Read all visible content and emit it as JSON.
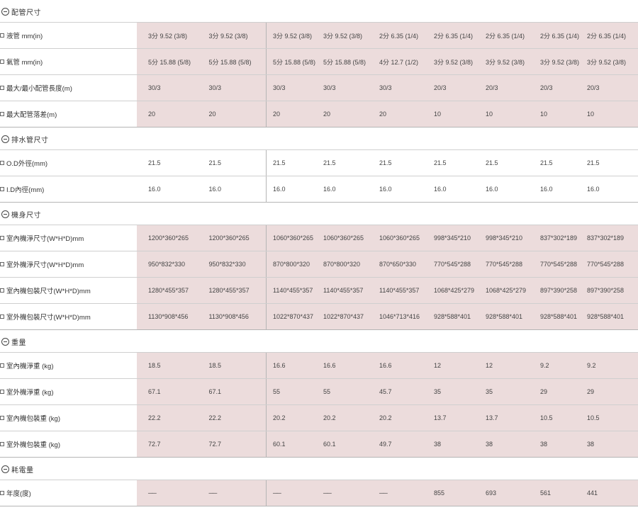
{
  "sections": [
    {
      "title": "配管尺寸",
      "pink": true,
      "rows": [
        {
          "label": "液管 mm(in)",
          "values": [
            "3分 9.52 (3/8)",
            "3分 9.52 (3/8)",
            "3分 9.52 (3/8)",
            "3分 9.52 (3/8)",
            "2分 6.35 (1/4)",
            "2分 6.35 (1/4)",
            "2分 6.35 (1/4)",
            "2分 6.35 (1/4)",
            "2分 6.35 (1/4)"
          ]
        },
        {
          "label": "氣管 mm(in)",
          "values": [
            "5分 15.88 (5/8)",
            "5分 15.88 (5/8)",
            "5分 15.88 (5/8)",
            "5分 15.88 (5/8)",
            "4分 12.7 (1/2)",
            "3分 9.52 (3/8)",
            "3分 9.52 (3/8)",
            "3分 9.52 (3/8)",
            "3分 9.52 (3/8)"
          ]
        },
        {
          "label": "最大/最小配管長度(m)",
          "values": [
            "30/3",
            "30/3",
            "30/3",
            "30/3",
            "30/3",
            "20/3",
            "20/3",
            "20/3",
            "20/3"
          ]
        },
        {
          "label": "最大配管落差(m)",
          "values": [
            "20",
            "20",
            "20",
            "20",
            "20",
            "10",
            "10",
            "10",
            "10"
          ]
        }
      ]
    },
    {
      "title": "排水管尺寸",
      "pink": false,
      "rows": [
        {
          "label": "O.D外徑(mm)",
          "values": [
            "21.5",
            "21.5",
            "21.5",
            "21.5",
            "21.5",
            "21.5",
            "21.5",
            "21.5",
            "21.5"
          ]
        },
        {
          "label": "I.D內徑(mm)",
          "values": [
            "16.0",
            "16.0",
            "16.0",
            "16.0",
            "16.0",
            "16.0",
            "16.0",
            "16.0",
            "16.0"
          ]
        }
      ]
    },
    {
      "title": "機身尺寸",
      "pink": true,
      "rows": [
        {
          "label": "室內機淨尺寸(W*H*D)mm",
          "values": [
            "1200*360*265",
            "1200*360*265",
            "1060*360*265",
            "1060*360*265",
            "1060*360*265",
            "998*345*210",
            "998*345*210",
            "837*302*189",
            "837*302*189"
          ]
        },
        {
          "label": "室外機淨尺寸(W*H*D)mm",
          "values": [
            "950*832*330",
            "950*832*330",
            "870*800*320",
            "870*800*320",
            "870*650*330",
            "770*545*288",
            "770*545*288",
            "770*545*288",
            "770*545*288"
          ]
        },
        {
          "label": "室內機包裝尺寸(W*H*D)mm",
          "values": [
            "1280*455*357",
            "1280*455*357",
            "1140*455*357",
            "1140*455*357",
            "1140*455*357",
            "1068*425*279",
            "1068*425*279",
            "897*390*258",
            "897*390*258"
          ]
        },
        {
          "label": "室外機包裝尺寸(W*H*D)mm",
          "values": [
            "1130*908*456",
            "1130*908*456",
            "1022*870*437",
            "1022*870*437",
            "1046*713*416",
            "928*588*401",
            "928*588*401",
            "928*588*401",
            "928*588*401"
          ]
        }
      ]
    },
    {
      "title": "重量",
      "pink": true,
      "rows": [
        {
          "label": "室內機淨重 (kg)",
          "values": [
            "18.5",
            "18.5",
            "16.6",
            "16.6",
            "16.6",
            "12",
            "12",
            "9.2",
            "9.2"
          ]
        },
        {
          "label": "室外機淨重 (kg)",
          "values": [
            "67.1",
            "67.1",
            "55",
            "55",
            "45.7",
            "35",
            "35",
            "29",
            "29"
          ]
        },
        {
          "label": "室內機包裝重 (kg)",
          "values": [
            "22.2",
            "22.2",
            "20.2",
            "20.2",
            "20.2",
            "13.7",
            "13.7",
            "10.5",
            "10.5"
          ]
        },
        {
          "label": "室外機包裝重 (kg)",
          "values": [
            "72.7",
            "72.7",
            "60.1",
            "60.1",
            "49.7",
            "38",
            "38",
            "38",
            "38"
          ]
        }
      ]
    },
    {
      "title": "耗電量",
      "pink": true,
      "rows": [
        {
          "label": "年度(度)",
          "values": [
            "──",
            "──",
            "──",
            "──",
            "──",
            "855",
            "693",
            "561",
            "441"
          ]
        }
      ]
    }
  ]
}
